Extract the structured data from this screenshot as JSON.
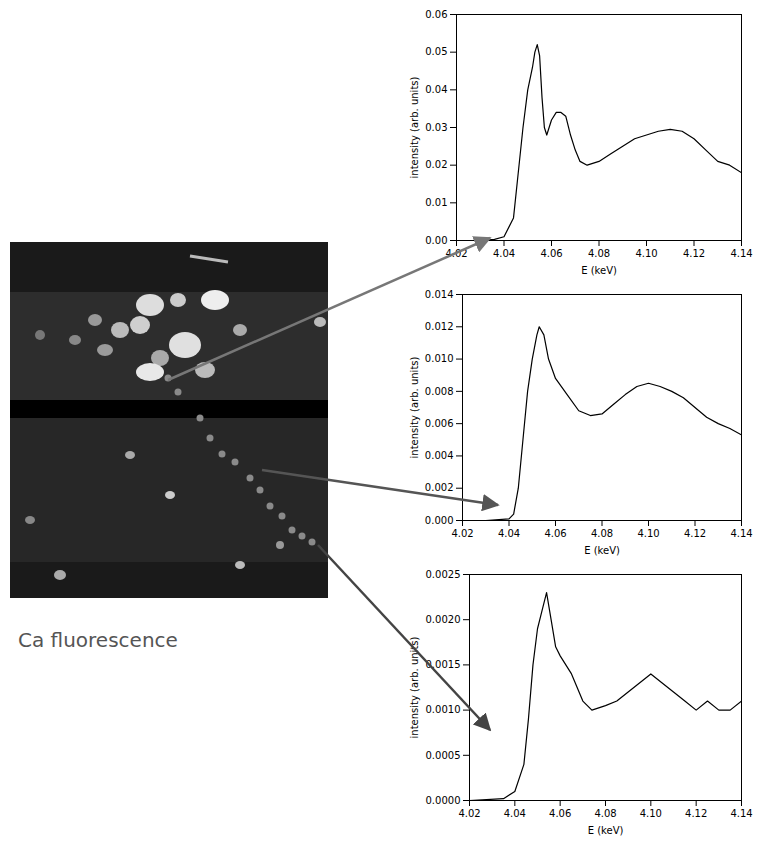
{
  "caption": "Ca fluorescence",
  "chart_data": [
    {
      "type": "line",
      "xlabel": "E (keV)",
      "ylabel": "intensity (arb. units)",
      "color": "#000000",
      "grid": false,
      "xlim": [
        4.02,
        4.14
      ],
      "xticks": [
        4.02,
        4.04,
        4.06,
        4.08,
        {
          "value": 4.1,
          "label": "4.10"
        },
        4.12,
        4.14
      ],
      "ylim": [
        0,
        0.06
      ],
      "yticks": [
        {
          "value": 0,
          "label": "0.00"
        },
        {
          "value": 0.01,
          "label": "0.01"
        },
        {
          "value": 0.02,
          "label": "0.02"
        },
        {
          "value": 0.03,
          "label": "0.03"
        },
        {
          "value": 0.04,
          "label": "0.04"
        },
        {
          "value": 0.05,
          "label": "0.05"
        },
        {
          "value": 0.06,
          "label": "0.06"
        }
      ],
      "x": [
        4.02,
        4.03,
        4.036,
        4.04,
        4.044,
        4.046,
        4.048,
        4.05,
        4.052,
        4.053,
        4.054,
        4.055,
        4.056,
        4.057,
        4.058,
        4.06,
        4.062,
        4.064,
        4.066,
        4.068,
        4.07,
        4.072,
        4.075,
        4.08,
        4.085,
        4.09,
        4.095,
        4.1,
        4.105,
        4.11,
        4.115,
        4.12,
        4.125,
        4.13,
        4.135,
        4.14
      ],
      "values": [
        0,
        0,
        0.0003,
        0.001,
        0.006,
        0.018,
        0.03,
        0.04,
        0.046,
        0.05,
        0.052,
        0.049,
        0.038,
        0.03,
        0.028,
        0.032,
        0.034,
        0.034,
        0.033,
        0.028,
        0.024,
        0.021,
        0.02,
        0.021,
        0.023,
        0.025,
        0.027,
        0.028,
        0.029,
        0.0295,
        0.029,
        0.027,
        0.024,
        0.021,
        0.02,
        0.018
      ]
    },
    {
      "type": "line",
      "xlabel": "E (keV)",
      "ylabel": "intensity (arb. units)",
      "color": "#000000",
      "grid": false,
      "xlim": [
        4.02,
        4.14
      ],
      "xticks": [
        4.02,
        4.04,
        4.06,
        4.08,
        {
          "value": 4.1,
          "label": "4.10"
        },
        4.12,
        4.14
      ],
      "ylim": [
        0,
        0.014
      ],
      "yticks": [
        {
          "value": 0,
          "label": "0.000"
        },
        {
          "value": 0.002,
          "label": "0.002"
        },
        {
          "value": 0.004,
          "label": "0.004"
        },
        {
          "value": 0.006,
          "label": "0.006"
        },
        {
          "value": 0.008,
          "label": "0.008"
        },
        {
          "value": 0.01,
          "label": "0.010"
        },
        {
          "value": 0.012,
          "label": "0.012"
        },
        {
          "value": 0.014,
          "label": "0.014"
        }
      ],
      "x": [
        4.02,
        4.03,
        4.04,
        4.042,
        4.044,
        4.046,
        4.048,
        4.05,
        4.052,
        4.053,
        4.055,
        4.057,
        4.06,
        4.065,
        4.07,
        4.075,
        4.08,
        4.085,
        4.09,
        4.095,
        4.1,
        4.105,
        4.11,
        4.115,
        4.12,
        4.125,
        4.13,
        4.135,
        4.14
      ],
      "values": [
        0,
        0,
        0.0001,
        0.0004,
        0.002,
        0.005,
        0.008,
        0.01,
        0.0115,
        0.012,
        0.0115,
        0.01,
        0.0088,
        0.0078,
        0.0068,
        0.0065,
        0.0066,
        0.0072,
        0.0078,
        0.0083,
        0.0085,
        0.0083,
        0.008,
        0.0076,
        0.007,
        0.0064,
        0.006,
        0.0057,
        0.0053
      ]
    },
    {
      "type": "line",
      "xlabel": "E (keV)",
      "ylabel": "intensity (arb. units)",
      "color": "#000000",
      "grid": false,
      "xlim": [
        4.02,
        4.14
      ],
      "xticks": [
        4.02,
        4.04,
        4.06,
        4.08,
        {
          "value": 4.1,
          "label": "4.10"
        },
        4.12,
        4.14
      ],
      "ylim": [
        0,
        0.0025
      ],
      "yticks": [
        {
          "value": 0,
          "label": "0.0000"
        },
        0.0005,
        {
          "value": 0.001,
          "label": "0.0010"
        },
        0.0015,
        {
          "value": 0.002,
          "label": "0.0020"
        },
        0.0025
      ],
      "x": [
        4.02,
        4.035,
        4.04,
        4.044,
        4.046,
        4.048,
        4.05,
        4.052,
        4.054,
        4.056,
        4.058,
        4.06,
        4.065,
        4.07,
        4.074,
        4.08,
        4.085,
        4.09,
        4.095,
        4.1,
        4.105,
        4.11,
        4.115,
        4.12,
        4.125,
        4.13,
        4.135,
        4.14
      ],
      "values": [
        0,
        2e-05,
        0.0001,
        0.0004,
        0.0009,
        0.0015,
        0.0019,
        0.0021,
        0.0023,
        0.002,
        0.0017,
        0.0016,
        0.0014,
        0.0011,
        0.001,
        0.00105,
        0.0011,
        0.0012,
        0.0013,
        0.0014,
        0.0013,
        0.0012,
        0.0011,
        0.001,
        0.0011,
        0.001,
        0.001,
        0.0011
      ]
    }
  ]
}
